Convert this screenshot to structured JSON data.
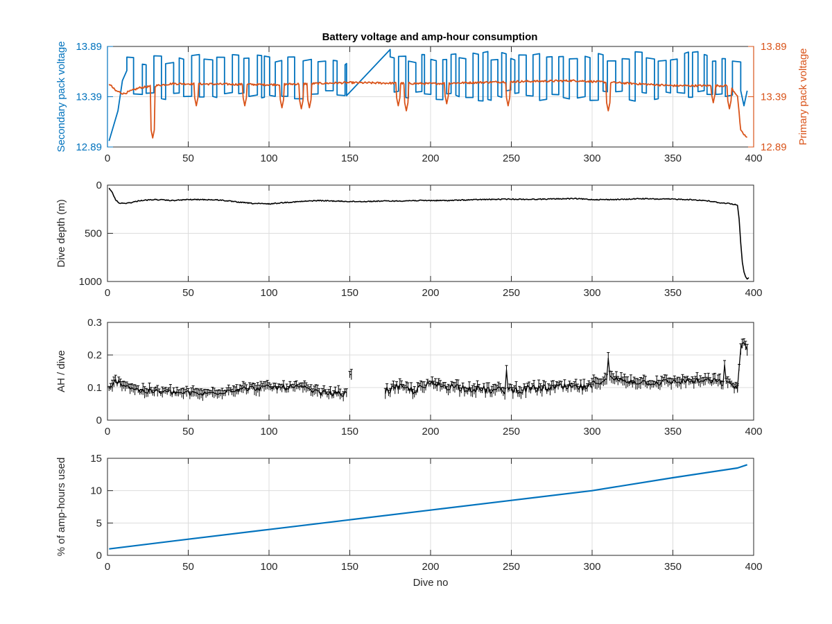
{
  "figure_title": "Battery voltage and amp-hour consumption",
  "colors": {
    "secondary": "#0072BD",
    "primary": "#D95319",
    "black": "#000000",
    "grid": "#dcdcdc",
    "axis": "#262626"
  },
  "chart_data": [
    {
      "type": "line",
      "xlabel": "",
      "ylabel": "Secondary pack voltage",
      "ylabel_right": "Primary pack voltage",
      "xlim": [
        0,
        400
      ],
      "ylim": [
        12.89,
        13.89
      ],
      "xticks": [
        0,
        50,
        100,
        150,
        200,
        250,
        300,
        350,
        400
      ],
      "yticks": [
        12.89,
        13.39,
        13.89
      ],
      "ytick_labels": [
        "12.89",
        "13.39",
        "13.89"
      ],
      "grid": true,
      "series": [
        {
          "axis": "left",
          "color": "secondary",
          "segments": [
            {
              "range": [
                1,
                12
              ],
              "values": [
                12.95,
                13.1,
                13.25,
                13.55,
                13.65
              ],
              "pattern": "ramp"
            },
            {
              "range": [
                12,
                148
              ],
              "hi": 13.82,
              "lo": 13.35,
              "period": 4.2,
              "pattern": "square"
            },
            {
              "range": [
                148,
                175
              ],
              "values": [
                13.4,
                13.86
              ],
              "pattern": "ramp"
            },
            {
              "range": [
                175,
                392
              ],
              "hi": 13.84,
              "lo": 13.35,
              "period": 4.0,
              "pattern": "square"
            },
            {
              "range": [
                392,
                396
              ],
              "values": [
                13.45,
                13.3,
                13.45
              ],
              "pattern": "ramp"
            }
          ]
        },
        {
          "axis": "right",
          "color": "primary",
          "baseline": [
            [
              1,
              13.52
            ],
            [
              5,
              13.45
            ],
            [
              10,
              13.42
            ],
            [
              20,
              13.48
            ],
            [
              40,
              13.52
            ],
            [
              100,
              13.51
            ],
            [
              150,
              13.53
            ],
            [
              200,
              13.52
            ],
            [
              250,
              13.54
            ],
            [
              290,
              13.55
            ],
            [
              350,
              13.5
            ],
            [
              385,
              13.5
            ],
            [
              390,
              13.4
            ],
            [
              392,
              13.05
            ],
            [
              396,
              12.98
            ]
          ],
          "dips": [
            [
              28,
              12.98
            ],
            [
              55,
              13.3
            ],
            [
              85,
              13.3
            ],
            [
              108,
              13.28
            ],
            [
              120,
              13.27
            ],
            [
              125,
              13.28
            ],
            [
              180,
              13.3
            ],
            [
              185,
              13.25
            ],
            [
              210,
              13.32
            ],
            [
              248,
              13.3
            ],
            [
              310,
              13.25
            ],
            [
              375,
              13.33
            ],
            [
              385,
              13.27
            ]
          ]
        }
      ]
    },
    {
      "type": "line",
      "xlabel": "",
      "ylabel": "Dive depth (m)",
      "xlim": [
        0,
        400
      ],
      "ylim": [
        0,
        1000
      ],
      "yreverse": true,
      "xticks": [
        0,
        50,
        100,
        150,
        200,
        250,
        300,
        350,
        400
      ],
      "yticks": [
        0,
        500,
        1000
      ],
      "ytick_labels": [
        "0",
        "500",
        "1000"
      ],
      "grid": true,
      "series": [
        {
          "color": "black",
          "x": [
            1,
            3,
            5,
            7,
            10,
            15,
            20,
            30,
            40,
            50,
            60,
            70,
            80,
            90,
            100,
            110,
            120,
            130,
            140,
            150,
            160,
            170,
            180,
            190,
            200,
            210,
            220,
            230,
            240,
            250,
            260,
            270,
            280,
            290,
            300,
            310,
            320,
            330,
            340,
            350,
            360,
            370,
            380,
            385,
            388,
            390,
            391,
            392,
            393,
            394,
            395,
            396,
            397
          ],
          "values": [
            30,
            80,
            150,
            185,
            190,
            180,
            160,
            150,
            160,
            150,
            150,
            155,
            175,
            190,
            195,
            180,
            170,
            160,
            165,
            170,
            170,
            165,
            165,
            160,
            160,
            160,
            155,
            150,
            148,
            145,
            148,
            145,
            142,
            140,
            150,
            150,
            148,
            140,
            145,
            145,
            150,
            160,
            185,
            190,
            200,
            210,
            350,
            600,
            800,
            900,
            950,
            975,
            960
          ]
        }
      ]
    },
    {
      "type": "line",
      "xlabel": "",
      "ylabel": "AH / dive",
      "xlim": [
        0,
        400
      ],
      "ylim": [
        0,
        0.3
      ],
      "xticks": [
        0,
        50,
        100,
        150,
        200,
        250,
        300,
        350,
        400
      ],
      "yticks": [
        0,
        0.1,
        0.2,
        0.3
      ],
      "ytick_labels": [
        "0",
        "0.1",
        "0.2",
        "0.3"
      ],
      "grid": true,
      "series": [
        {
          "color": "black",
          "segments": [
            {
              "range": [
                1,
                148
              ],
              "base": [
                [
                  1,
                  0.09
                ],
                [
                  5,
                  0.12
                ],
                [
                  10,
                  0.11
                ],
                [
                  20,
                  0.09
                ],
                [
                  40,
                  0.085
                ],
                [
                  60,
                  0.08
                ],
                [
                  80,
                  0.095
                ],
                [
                  100,
                  0.1
                ],
                [
                  120,
                  0.1
                ],
                [
                  130,
                  0.085
                ],
                [
                  148,
                  0.08
                ]
              ],
              "jitter": 0.018
            },
            {
              "range": [
                150,
                151
              ],
              "base": [
                [
                  150,
                  0.14
                ],
                [
                  151,
                  0.14
                ]
              ],
              "jitter": 0.0
            },
            {
              "range": [
                172,
                300
              ],
              "base": [
                [
                  172,
                  0.09
                ],
                [
                  180,
                  0.1
                ],
                [
                  190,
                  0.09
                ],
                [
                  200,
                  0.11
                ],
                [
                  220,
                  0.1
                ],
                [
                  240,
                  0.09
                ],
                [
                  260,
                  0.095
                ],
                [
                  280,
                  0.1
                ],
                [
                  300,
                  0.1
                ]
              ],
              "jitter": 0.025
            },
            {
              "range": [
                300,
                390
              ],
              "base": [
                [
                  300,
                  0.11
                ],
                [
                  310,
                  0.13
                ],
                [
                  320,
                  0.12
                ],
                [
                  340,
                  0.115
                ],
                [
                  360,
                  0.12
                ],
                [
                  375,
                  0.12
                ],
                [
                  385,
                  0.11
                ],
                [
                  390,
                  0.1
                ]
              ],
              "jitter": 0.02
            },
            {
              "range": [
                390,
                396
              ],
              "base": [
                [
                  390,
                  0.1
                ],
                [
                  392,
                  0.22
                ],
                [
                  394,
                  0.24
                ],
                [
                  396,
                  0.22
                ]
              ],
              "jitter": 0.01
            }
          ],
          "spikes": [
            [
              150,
              0.14
            ],
            [
              247,
              0.155
            ],
            [
              310,
              0.19
            ],
            [
              382,
              0.17
            ]
          ]
        }
      ]
    },
    {
      "type": "line",
      "xlabel": "Dive no",
      "ylabel": "% of amp-hours used",
      "xlim": [
        0,
        400
      ],
      "ylim": [
        0,
        15
      ],
      "xticks": [
        0,
        50,
        100,
        150,
        200,
        250,
        300,
        350,
        400
      ],
      "yticks": [
        0,
        5,
        10,
        15
      ],
      "ytick_labels": [
        "0",
        "5",
        "10",
        "15"
      ],
      "grid": true,
      "series": [
        {
          "color": "secondary",
          "x": [
            1,
            50,
            100,
            150,
            200,
            250,
            300,
            350,
            390,
            396
          ],
          "values": [
            1.0,
            2.5,
            4.0,
            5.5,
            7.0,
            8.5,
            10.0,
            12.0,
            13.5,
            14.0
          ]
        }
      ]
    }
  ]
}
